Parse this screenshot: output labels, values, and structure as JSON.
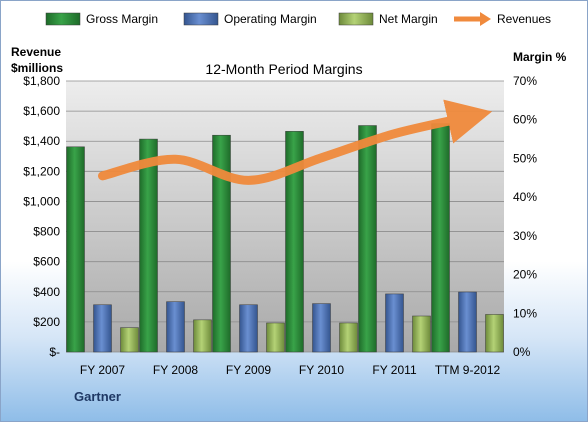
{
  "chart_data": {
    "type": "bar",
    "title": "12-Month Period Margins",
    "categories": [
      "FY 2007",
      "FY 2008",
      "FY 2009",
      "FY 2010",
      "FY 2011",
      "TTM 9-2012"
    ],
    "series": [
      {
        "name": "Gross Margin",
        "axis": "right",
        "color": "#2e8b3a",
        "values": [
          53,
          55,
          56,
          57,
          58.5,
          59
        ]
      },
      {
        "name": "Operating Margin",
        "axis": "right",
        "color": "#4f71be",
        "values": [
          12.2,
          13,
          12.2,
          12.5,
          15,
          15.5
        ]
      },
      {
        "name": "Net Margin",
        "axis": "right",
        "color": "#9bbb59",
        "values": [
          6.3,
          8.3,
          7.5,
          7.5,
          9.3,
          9.7
        ]
      },
      {
        "name": "Revenues",
        "axis": "left",
        "type": "line",
        "color": "#f08a3c",
        "values": [
          1170,
          1280,
          1140,
          1290,
          1450,
          1560
        ]
      }
    ],
    "left_axis": {
      "label_lines": [
        "Revenue",
        "$millions"
      ],
      "ticks": [
        "$-",
        "$200",
        "$400",
        "$600",
        "$800",
        "$1,000",
        "$1,200",
        "$1,400",
        "$1,600",
        "$1,800"
      ],
      "range": [
        0,
        1800
      ]
    },
    "right_axis": {
      "label": "Margin %",
      "ticks": [
        "0%",
        "10%",
        "20%",
        "30%",
        "40%",
        "50%",
        "60%",
        "70%"
      ],
      "range": [
        0,
        70
      ]
    },
    "legend_position": "top",
    "grid": true
  },
  "footer": {
    "company": "Gartner"
  }
}
